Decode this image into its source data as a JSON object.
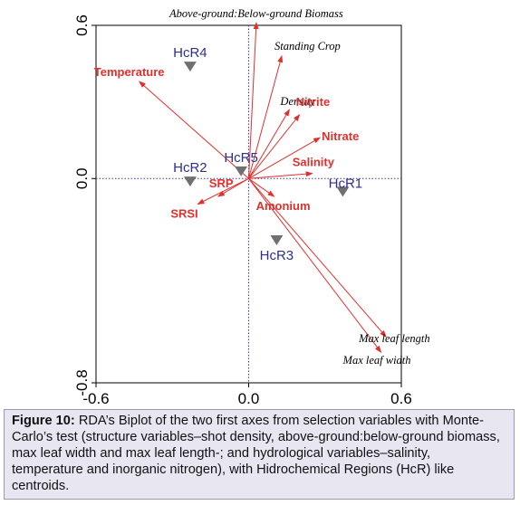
{
  "chart_data": {
    "type": "scatter",
    "xlim": [
      -0.6,
      0.6
    ],
    "ylim": [
      -0.8,
      0.6
    ],
    "x_ticks": [
      "-0.6",
      "0.0",
      "0.6"
    ],
    "y_ticks": [
      "0.6",
      "0.0",
      "-0.8"
    ],
    "reference_lines": "dotted lines at x=0 and y=0",
    "centroids": [
      {
        "label": "HcR4",
        "x": -0.23,
        "y": 0.44
      },
      {
        "label": "HcR5",
        "x": -0.03,
        "y": 0.03
      },
      {
        "label": "HcR2",
        "x": -0.23,
        "y": -0.01
      },
      {
        "label": "HcR1",
        "x": 0.37,
        "y": -0.05
      },
      {
        "label": "HcR3",
        "x": 0.11,
        "y": -0.24
      }
    ],
    "structure_vectors": [
      {
        "label": "Above-ground:Below-ground Biomass",
        "x": 0.03,
        "y": 0.61
      },
      {
        "label": "Standing Crop",
        "x": 0.13,
        "y": 0.48
      },
      {
        "label": "Density",
        "x": 0.16,
        "y": 0.27
      },
      {
        "label": "Max leaf length",
        "x": 0.54,
        "y": -0.62
      },
      {
        "label": "Max leaf width",
        "x": 0.52,
        "y": -0.68
      }
    ],
    "hydrological_vectors": [
      {
        "label": "Temperature",
        "x": -0.43,
        "y": 0.38
      },
      {
        "label": "Nitrite",
        "x": 0.2,
        "y": 0.25
      },
      {
        "label": "Nitrate",
        "x": 0.28,
        "y": 0.16
      },
      {
        "label": "Salinity",
        "x": 0.25,
        "y": 0.02
      },
      {
        "label": "Amonium",
        "x": 0.1,
        "y": -0.07
      },
      {
        "label": "SRP",
        "x": -0.12,
        "y": -0.07
      },
      {
        "label": "SRSI",
        "x": -0.2,
        "y": -0.1
      }
    ],
    "colors": {
      "centroid_label": "#2e2f8c",
      "centroid_marker": "#707070",
      "hydro_label": "#e0302e",
      "vector": "#e0302e",
      "structure_label": "#000000"
    }
  },
  "caption": {
    "figure_label": "Figure 10:",
    "text": "RDA’s Biplot of the two first axes from selection variables with Monte-Carlo’s test (structure variables–shot density, above-ground:below-ground biomass, max leaf width and max leaf length-; and hydrological variables–salinity, temperature and inorganic nitrogen), with Hidrochemical Regions (HcR) like centroids."
  }
}
